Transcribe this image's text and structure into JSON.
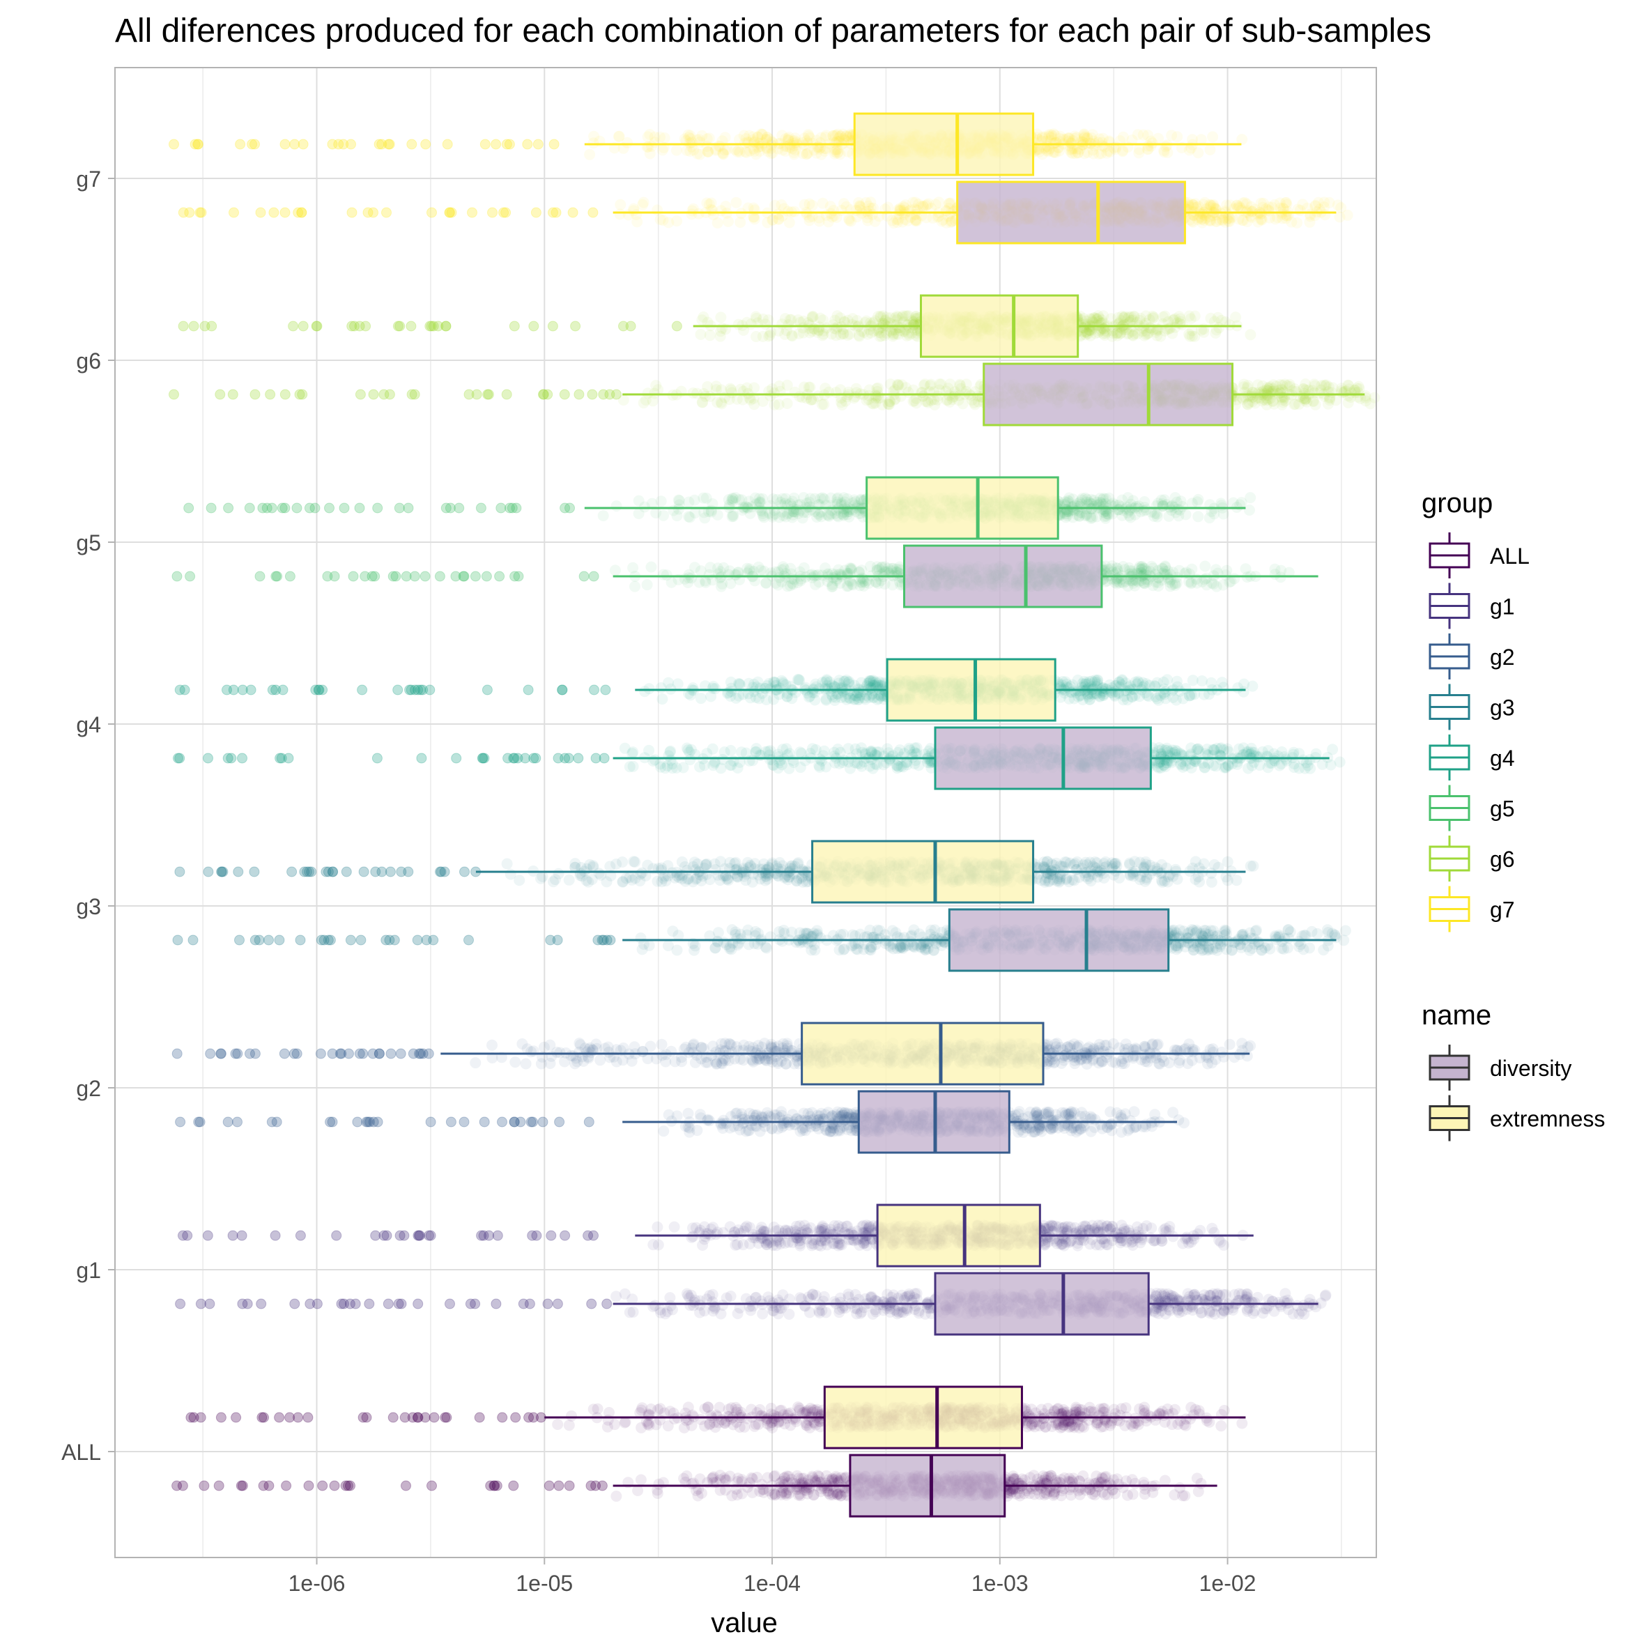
{
  "chart_data": {
    "type": "boxplot",
    "title": "All diferences produced for each combination of parameters for each pair of sub-samples",
    "xlabel": "value",
    "ylabel": "",
    "x_scale": "log10",
    "xlim": [
      1.3e-07,
      0.045
    ],
    "x_ticks": [
      {
        "value": 1e-06,
        "label": "1e-06"
      },
      {
        "value": 1e-05,
        "label": "1e-05"
      },
      {
        "value": 0.0001,
        "label": "1e-04"
      },
      {
        "value": 0.001,
        "label": "1e-03"
      },
      {
        "value": 0.01,
        "label": "1e-02"
      }
    ],
    "categories": [
      "ALL",
      "g1",
      "g2",
      "g3",
      "g4",
      "g5",
      "g6",
      "g7"
    ],
    "grid": true,
    "legend_position": "right",
    "legends": [
      {
        "title": "group",
        "entries": [
          {
            "label": "ALL",
            "color": "#440154"
          },
          {
            "label": "g1",
            "color": "#46337E"
          },
          {
            "label": "g2",
            "color": "#365C8D"
          },
          {
            "label": "g3",
            "color": "#277F8E"
          },
          {
            "label": "g4",
            "color": "#1FA187"
          },
          {
            "label": "g5",
            "color": "#4AC16D"
          },
          {
            "label": "g6",
            "color": "#A0DA39"
          },
          {
            "label": "g7",
            "color": "#FDE725"
          }
        ]
      },
      {
        "title": "name",
        "entries": [
          {
            "label": "diversity",
            "fill": "#C5B4CF"
          },
          {
            "label": "extremness",
            "fill": "#FDF5B6"
          }
        ]
      }
    ],
    "series": [
      {
        "name": "extremness",
        "fill": "#FDF5B6",
        "boxes": [
          {
            "group": "ALL",
            "whisker_low": 1e-05,
            "q1": 0.00017,
            "median": 0.00053,
            "q3": 0.00125,
            "whisker_high": 0.012
          },
          {
            "group": "g1",
            "whisker_low": 2.5e-05,
            "q1": 0.00029,
            "median": 0.0007,
            "q3": 0.0015,
            "whisker_high": 0.013
          },
          {
            "group": "g2",
            "whisker_low": 3.5e-06,
            "q1": 0.000135,
            "median": 0.00055,
            "q3": 0.00155,
            "whisker_high": 0.0125
          },
          {
            "group": "g3",
            "whisker_low": 5e-06,
            "q1": 0.00015,
            "median": 0.00052,
            "q3": 0.0014,
            "whisker_high": 0.012
          },
          {
            "group": "g4",
            "whisker_low": 2.5e-05,
            "q1": 0.00032,
            "median": 0.00078,
            "q3": 0.00175,
            "whisker_high": 0.012
          },
          {
            "group": "g5",
            "whisker_low": 1.5e-05,
            "q1": 0.00026,
            "median": 0.0008,
            "q3": 0.0018,
            "whisker_high": 0.012
          },
          {
            "group": "g6",
            "whisker_low": 4.5e-05,
            "q1": 0.00045,
            "median": 0.00115,
            "q3": 0.0022,
            "whisker_high": 0.0115
          },
          {
            "group": "g7",
            "whisker_low": 1.5e-05,
            "q1": 0.00023,
            "median": 0.00065,
            "q3": 0.0014,
            "whisker_high": 0.0115
          }
        ]
      },
      {
        "name": "diversity",
        "fill": "#C5B4CF",
        "boxes": [
          {
            "group": "ALL",
            "whisker_low": 2e-05,
            "q1": 0.00022,
            "median": 0.0005,
            "q3": 0.00105,
            "whisker_high": 0.009
          },
          {
            "group": "g1",
            "whisker_low": 2e-05,
            "q1": 0.00052,
            "median": 0.0019,
            "q3": 0.0045,
            "whisker_high": 0.025
          },
          {
            "group": "g2",
            "whisker_low": 2.2e-05,
            "q1": 0.00024,
            "median": 0.00052,
            "q3": 0.0011,
            "whisker_high": 0.006
          },
          {
            "group": "g3",
            "whisker_low": 2.2e-05,
            "q1": 0.0006,
            "median": 0.0024,
            "q3": 0.0055,
            "whisker_high": 0.03
          },
          {
            "group": "g4",
            "whisker_low": 2e-05,
            "q1": 0.00052,
            "median": 0.0019,
            "q3": 0.0046,
            "whisker_high": 0.028
          },
          {
            "group": "g5",
            "whisker_low": 2e-05,
            "q1": 0.00038,
            "median": 0.0013,
            "q3": 0.0028,
            "whisker_high": 0.025
          },
          {
            "group": "g6",
            "whisker_low": 2.2e-05,
            "q1": 0.00085,
            "median": 0.0045,
            "q3": 0.0105,
            "whisker_high": 0.04
          },
          {
            "group": "g7",
            "whisker_low": 2e-05,
            "q1": 0.00065,
            "median": 0.0027,
            "q3": 0.0065,
            "whisker_high": 0.03
          }
        ]
      }
    ]
  }
}
